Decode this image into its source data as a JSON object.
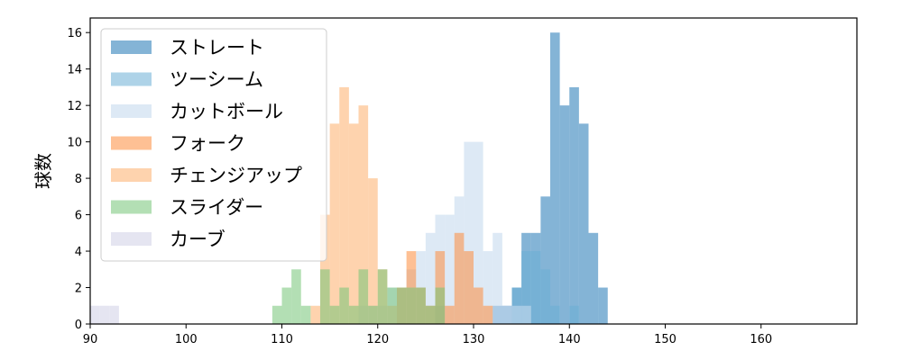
{
  "chart_data": {
    "type": "bar",
    "subtype": "overlapping-histogram",
    "xlabel": "",
    "ylabel": "球数",
    "xlim": [
      90,
      170
    ],
    "ylim": [
      0,
      16.8
    ],
    "x_ticks": [
      90,
      100,
      110,
      120,
      130,
      140,
      150,
      160
    ],
    "y_ticks": [
      0,
      2,
      4,
      6,
      8,
      10,
      12,
      14,
      16
    ],
    "bin_width": 1,
    "grid": false,
    "legend_position": "top-left",
    "series": [
      {
        "name": "ストレート",
        "color": "#1f77b4",
        "opacity": 0.55,
        "bins": [
          [
            132,
            1
          ],
          [
            133,
            1
          ],
          [
            134,
            2
          ],
          [
            135,
            5
          ],
          [
            136,
            5
          ],
          [
            137,
            7
          ],
          [
            138,
            16
          ],
          [
            139,
            12
          ],
          [
            140,
            13
          ],
          [
            141,
            11
          ],
          [
            142,
            5
          ],
          [
            143,
            2
          ]
        ]
      },
      {
        "name": "ツーシーム",
        "color": "#6baed6",
        "opacity": 0.55,
        "bins": [
          [
            126,
            1
          ],
          [
            134,
            2
          ],
          [
            135,
            4
          ],
          [
            136,
            4
          ],
          [
            137,
            3
          ],
          [
            138,
            1
          ],
          [
            140,
            1
          ]
        ]
      },
      {
        "name": "カットボール",
        "color": "#c6dbef",
        "opacity": 0.6,
        "bins": [
          [
            118,
            1
          ],
          [
            119,
            1
          ],
          [
            120,
            1
          ],
          [
            121,
            2
          ],
          [
            122,
            2
          ],
          [
            123,
            3
          ],
          [
            124,
            4
          ],
          [
            125,
            5
          ],
          [
            126,
            6
          ],
          [
            127,
            6
          ],
          [
            128,
            7
          ],
          [
            129,
            10
          ],
          [
            130,
            10
          ],
          [
            131,
            4
          ],
          [
            132,
            5
          ],
          [
            133,
            1
          ],
          [
            134,
            1
          ],
          [
            135,
            1
          ]
        ]
      },
      {
        "name": "フォーク",
        "color": "#fd8d3c",
        "opacity": 0.55,
        "bins": [
          [
            122,
            2
          ],
          [
            123,
            4
          ],
          [
            124,
            2
          ],
          [
            125,
            1
          ],
          [
            126,
            4
          ],
          [
            127,
            1
          ],
          [
            128,
            5
          ],
          [
            129,
            4
          ],
          [
            130,
            2
          ],
          [
            131,
            1
          ]
        ]
      },
      {
        "name": "チェンジアップ",
        "color": "#fdae6b",
        "opacity": 0.55,
        "bins": [
          [
            113,
            1
          ],
          [
            114,
            6
          ],
          [
            115,
            11
          ],
          [
            116,
            13
          ],
          [
            117,
            11
          ],
          [
            118,
            12
          ],
          [
            119,
            8
          ],
          [
            120,
            3
          ],
          [
            121,
            1
          ]
        ]
      },
      {
        "name": "スライダー",
        "color": "#74c476",
        "opacity": 0.55,
        "bins": [
          [
            109,
            1
          ],
          [
            110,
            2
          ],
          [
            111,
            3
          ],
          [
            112,
            1
          ],
          [
            114,
            3
          ],
          [
            115,
            1
          ],
          [
            116,
            2
          ],
          [
            117,
            1
          ],
          [
            118,
            3
          ],
          [
            119,
            1
          ],
          [
            120,
            3
          ],
          [
            121,
            2
          ],
          [
            122,
            2
          ],
          [
            123,
            2
          ],
          [
            124,
            2
          ],
          [
            125,
            1
          ],
          [
            126,
            2
          ]
        ]
      },
      {
        "name": "カーブ",
        "color": "#dadaeb",
        "opacity": 0.7,
        "bins": [
          [
            90,
            1
          ],
          [
            91,
            1
          ],
          [
            92,
            1
          ]
        ]
      }
    ]
  }
}
